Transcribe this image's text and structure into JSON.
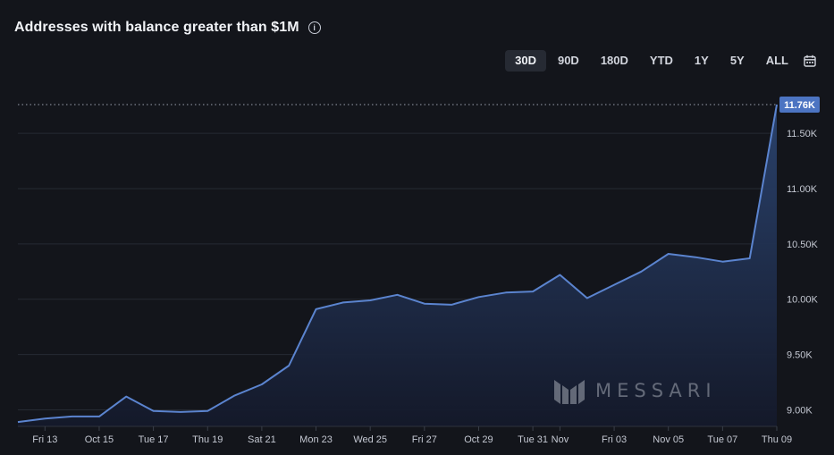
{
  "header": {
    "title": "Addresses with balance greater than $1M",
    "info_glyph": "i"
  },
  "ranges": {
    "items": [
      "30D",
      "90D",
      "180D",
      "YTD",
      "1Y",
      "5Y",
      "ALL"
    ],
    "selected": "30D"
  },
  "watermark": {
    "text": "MESSARI"
  },
  "colors": {
    "background": "#13151b",
    "line": "#5b84cf",
    "area_top": "#2b4470",
    "area_bottom": "#14192a",
    "grid": "#262a33",
    "label_badge": "#4c74c2"
  },
  "chart_data": {
    "type": "area",
    "title": "Addresses with balance greater than $1M",
    "xlabel": "",
    "ylabel": "",
    "ylim": [
      8850,
      11760
    ],
    "grid": true,
    "y_ticks": [
      9000,
      9500,
      10000,
      10500,
      11000,
      11500
    ],
    "y_tick_labels": [
      "9.00K",
      "9.50K",
      "10.00K",
      "10.50K",
      "11.00K",
      "11.50K"
    ],
    "x_tick_labels": [
      "Fri 13",
      "Oct 15",
      "Tue 17",
      "Thu 19",
      "Sat 21",
      "Mon 23",
      "Wed 25",
      "Fri 27",
      "Oct 29",
      "Tue 31",
      "Nov",
      "Fri 03",
      "Nov 05",
      "Tue 07",
      "Thu 09"
    ],
    "x_tick_dates": [
      "2023-10-13",
      "2023-10-15",
      "2023-10-17",
      "2023-10-19",
      "2023-10-21",
      "2023-10-23",
      "2023-10-25",
      "2023-10-27",
      "2023-10-29",
      "2023-10-31",
      "2023-11-01",
      "2023-11-03",
      "2023-11-05",
      "2023-11-07",
      "2023-11-09"
    ],
    "last_value_label": "11.76K",
    "series": [
      {
        "x": [
          "2023-10-12",
          "2023-10-13",
          "2023-10-14",
          "2023-10-15",
          "2023-10-16",
          "2023-10-17",
          "2023-10-18",
          "2023-10-19",
          "2023-10-20",
          "2023-10-21",
          "2023-10-22",
          "2023-10-23",
          "2023-10-24",
          "2023-10-25",
          "2023-10-26",
          "2023-10-27",
          "2023-10-28",
          "2023-10-29",
          "2023-10-30",
          "2023-10-31",
          "2023-11-01",
          "2023-11-02",
          "2023-11-03",
          "2023-11-04",
          "2023-11-05",
          "2023-11-06",
          "2023-11-07",
          "2023-11-08",
          "2023-11-09"
        ],
        "values": [
          8890,
          8920,
          8940,
          8940,
          9120,
          8990,
          8980,
          8990,
          9130,
          9230,
          9400,
          9910,
          9970,
          9990,
          10040,
          9960,
          9950,
          10020,
          10060,
          10070,
          10220,
          10010,
          10130,
          10250,
          10410,
          10380,
          10340,
          10370,
          11760
        ]
      }
    ]
  }
}
